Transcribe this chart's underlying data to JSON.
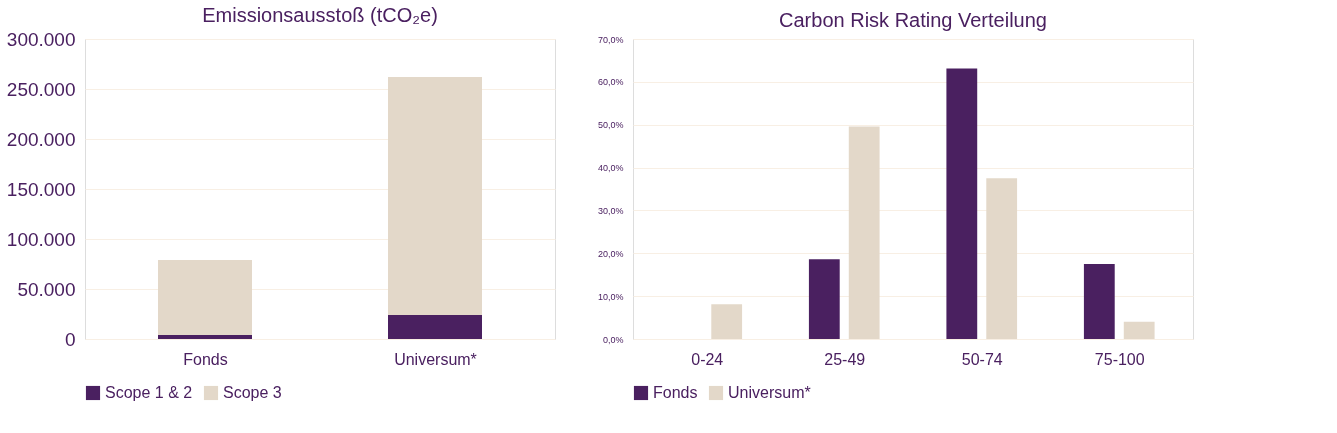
{
  "chart_data": [
    {
      "type": "bar",
      "title": "Emissionsausstoß (tCO₂e)",
      "categories": [
        "Fonds",
        "Universum*"
      ],
      "stacked": true,
      "series": [
        {
          "name": "Scope 1 & 2",
          "color": "#4a2060",
          "values": [
            4000,
            24000
          ]
        },
        {
          "name": "Scope 3",
          "color": "#e3d8c9",
          "values": [
            75000,
            238000
          ]
        }
      ],
      "ylim": [
        0,
        300000
      ],
      "yticks": [
        {
          "value": 0,
          "label": "0"
        },
        {
          "value": 50000,
          "label": "50.000"
        },
        {
          "value": 100000,
          "label": "100.000"
        },
        {
          "value": 150000,
          "label": "150.000"
        },
        {
          "value": 200000,
          "label": "200.000"
        },
        {
          "value": 250000,
          "label": "250.000"
        },
        {
          "value": 300000,
          "label": "300.000"
        }
      ],
      "grid": "y",
      "legend": "bottom"
    },
    {
      "type": "bar",
      "title": "Carbon Risk Rating Verteilung",
      "categories": [
        "0-24",
        "25-49",
        "50-74",
        "75-100"
      ],
      "series": [
        {
          "name": "Fonds",
          "color": "#4a2060",
          "values": [
            0,
            18.6,
            63.1,
            17.5
          ]
        },
        {
          "name": "Universum*",
          "color": "#e3d8c9",
          "values": [
            8.1,
            49.6,
            37.5,
            4.0
          ]
        }
      ],
      "ylim": [
        0,
        70
      ],
      "yticks": [
        {
          "value": 0,
          "label": "0,0%"
        },
        {
          "value": 10,
          "label": "10,0%"
        },
        {
          "value": 20,
          "label": "20,0%"
        },
        {
          "value": 30,
          "label": "30,0%"
        },
        {
          "value": 40,
          "label": "40,0%"
        },
        {
          "value": 50,
          "label": "50,0%"
        },
        {
          "value": 60,
          "label": "60,0%"
        },
        {
          "value": 70,
          "label": "70,0%"
        }
      ],
      "grid": "y",
      "legend": "bottom"
    }
  ]
}
